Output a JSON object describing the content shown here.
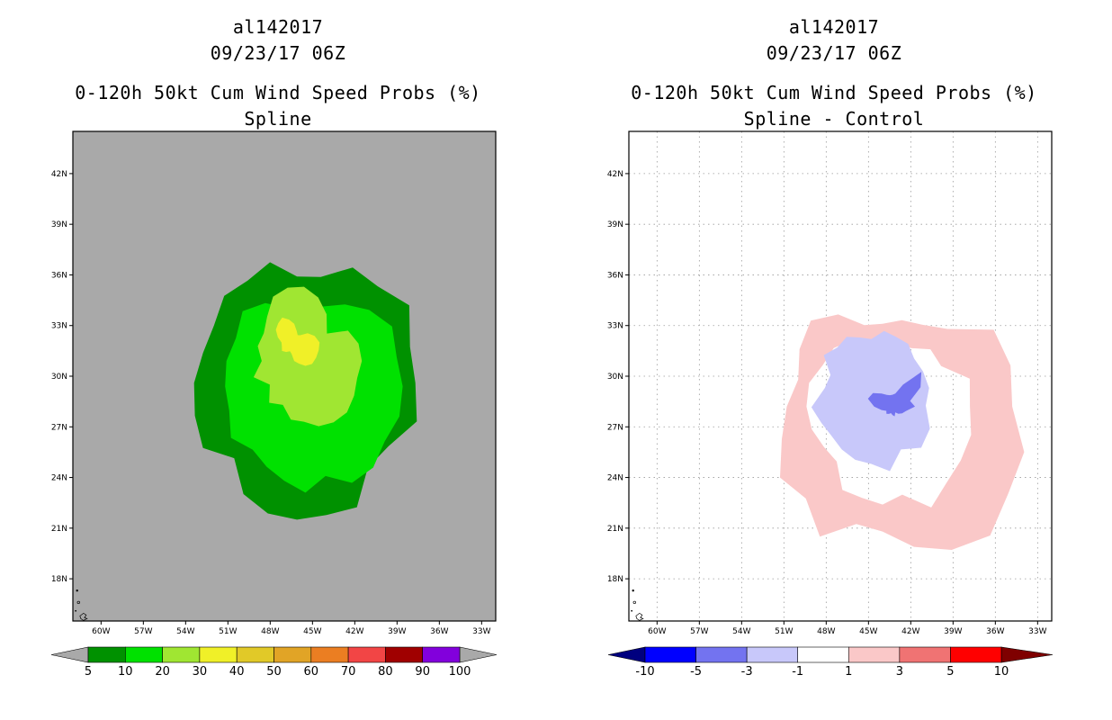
{
  "colors": {
    "map_background_left": "#a9a9a9",
    "map_background_right": "#ffffff",
    "grid": "#9a9a9a",
    "outline": "#000000"
  },
  "panels": [
    {
      "storm_id": "al142017",
      "datetime": "09/23/17 06Z",
      "product": "0-120h 50kt Cum Wind Speed Probs (%)",
      "subtitle": "Spline"
    },
    {
      "storm_id": "al142017",
      "datetime": "09/23/17 06Z",
      "product": "0-120h 50kt Cum Wind Speed Probs (%)",
      "subtitle": "Spline - Control"
    }
  ],
  "chart_data": [
    {
      "type": "heatmap",
      "title": "0-120h 50kt Cum Wind Speed Probs (%)",
      "subtitle": "Spline",
      "xlabel": "",
      "ylabel": "",
      "xlim": [
        -62,
        -32
      ],
      "ylim": [
        15.5,
        44.5
      ],
      "x_ticks": [
        "60W",
        "57W",
        "54W",
        "51W",
        "48W",
        "45W",
        "42W",
        "39W",
        "36W",
        "33W"
      ],
      "y_ticks": [
        "42N",
        "39N",
        "36N",
        "33N",
        "30N",
        "27N",
        "24N",
        "21N",
        "18N"
      ],
      "grid": false,
      "colorbar": {
        "labels": [
          "5",
          "10",
          "20",
          "30",
          "40",
          "50",
          "60",
          "70",
          "80",
          "90",
          "100"
        ],
        "colors": [
          "#009100",
          "#00e100",
          "#a0e632",
          "#f0f028",
          "#e1c928",
          "#e1a426",
          "#eb7e22",
          "#f24545",
          "#a00000",
          "#8200dc"
        ]
      },
      "contours": [
        {
          "level": 5,
          "color": "#009100",
          "center": [
            -46.1,
            29.6
          ],
          "radii_deg": [
            8.4,
            8.3,
            9.2,
            8.1,
            7.9,
            6.5,
            6.3,
            7.4,
            7.0,
            7.3,
            6.8,
            6.9,
            7.3,
            7.5,
            7.7,
            6.3,
            7.6,
            8.0,
            8.1,
            8.1,
            8.5,
            7.1,
            7.5,
            8.8
          ]
        },
        {
          "level": 10,
          "color": "#00e100",
          "center": [
            -45.5,
            29.4
          ],
          "radii_deg": [
            6.9,
            6.7,
            7.1,
            6.4,
            5.6,
            4.9,
            4.5,
            4.8,
            5.7,
            6.3,
            5.7,
            5.8,
            5.7,
            5.6,
            6.1,
            5.3,
            5.5,
            5.8,
            6.3,
            5.5,
            6.6,
            6.8,
            6.5,
            6.9
          ]
        },
        {
          "level": 20,
          "color": "#a0e632",
          "center": [
            -45.6,
            30.9
          ],
          "radii_deg": [
            4.1,
            4.0,
            3.6,
            2.3,
            3.2,
            3.9,
            4.4,
            4.5,
            4.4,
            3.7,
            3.3,
            3.4,
            3.0,
            3.7,
            2.8,
            3.5,
            3.0,
            3.6,
            3.6,
            4.0,
            4.2,
            4.3,
            4.1,
            3.9
          ]
        },
        {
          "level": 30,
          "color": "#f0f028",
          "center": [
            -46.3,
            32.0
          ],
          "radii_deg": [
            1.8,
            1.5,
            1.1,
            0.6,
            0.5,
            0.7,
            1.1,
            1.4,
            1.7,
            1.6,
            1.5,
            1.2,
            0.9,
            0.9,
            1.0,
            0.8,
            0.6,
            0.7,
            1.1,
            1.3,
            1.6,
            1.8,
            1.8,
            1.8
          ]
        }
      ]
    },
    {
      "type": "heatmap",
      "title": "0-120h 50kt Cum Wind Speed Probs (%)",
      "subtitle": "Spline - Control",
      "xlabel": "",
      "ylabel": "",
      "xlim": [
        -62,
        -32
      ],
      "ylim": [
        15.5,
        44.5
      ],
      "x_ticks": [
        "60W",
        "57W",
        "54W",
        "51W",
        "48W",
        "45W",
        "42W",
        "39W",
        "36W",
        "33W"
      ],
      "y_ticks": [
        "42N",
        "39N",
        "36N",
        "33N",
        "30N",
        "27N",
        "24N",
        "21N",
        "18N"
      ],
      "grid": true,
      "colorbar": {
        "labels": [
          "-10",
          "-5",
          "-3",
          "-1",
          "1",
          "3",
          "5",
          "10"
        ],
        "colors": [
          "#00007f",
          "#0000ff",
          "#7373f0",
          "#c8c8fa",
          "#ffffff",
          "#fac8c8",
          "#f07373",
          "#ff0000",
          "#7f0000"
        ]
      },
      "contours": [
        {
          "level": "1 to 3",
          "color": "#fac8c8",
          "shape": "ring",
          "center": [
            -44.0,
            28.2
          ],
          "outer_radii_deg": [
            9.2,
            9.4,
            9.1,
            6.5,
            5.6,
            5.3,
            4.9,
            5.0,
            6.3,
            7.2,
            6.8,
            6.2,
            6.8,
            7.4,
            8.4,
            7.7,
            8.9,
            7.2,
            7.4,
            8.6,
            9.8,
            10.8,
            10.3,
            10.4
          ],
          "inner_radii_deg": [
            6.2,
            6.4,
            4.8,
            4.8,
            4.0,
            4.1,
            3.6,
            3.8,
            4.5,
            4.9,
            4.9,
            5.4,
            5.4,
            5.2,
            4.8,
            4.6,
            5.7,
            5.6,
            5.8,
            5.4,
            6.9,
            6.4,
            6.4,
            6.5
          ]
        },
        {
          "level": "-3 to -1",
          "color": "#c8c8fa",
          "center": [
            -44.8,
            29.3
          ],
          "radii_deg": [
            4.1,
            3.8,
            3.5,
            3.7,
            3.5,
            3.5,
            2.9,
            3.1,
            3.5,
            3.4,
            3.9,
            3.0,
            3.3,
            4.4,
            4.1,
            4.0,
            4.2,
            4.4,
            4.5,
            5.1,
            4.2,
            5.0,
            4.8,
            4.0
          ]
        },
        {
          "level": "-5 to -3",
          "color": "#7373f0",
          "center": [
            -43.3,
            28.2
          ],
          "radii_deg": [
            1.6,
            1.3,
            2.3,
            2.9,
            1.5,
            0.8,
            0.7,
            0.7,
            0.8,
            1.1,
            1.6,
            1.8,
            1.3,
            0.8,
            0.5,
            0.6,
            0.5,
            0.4,
            0.5,
            0.6,
            0.4,
            0.6,
            0.8,
            1.0
          ]
        }
      ]
    }
  ]
}
